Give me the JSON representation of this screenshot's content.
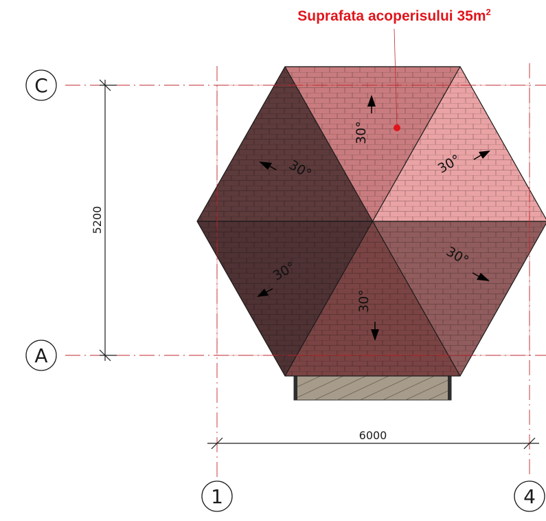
{
  "title": {
    "text": "Suprafata acoperisului 35m",
    "sup": "2",
    "color": "#e0151c"
  },
  "grid": {
    "rows": [
      {
        "label": "C"
      },
      {
        "label": "A"
      }
    ],
    "columns": [
      {
        "label": "1"
      },
      {
        "label": "4"
      }
    ]
  },
  "dimensions": {
    "vertical": "5200",
    "horizontal": "6000"
  },
  "roof": {
    "shape": "hexagonal hip roof, six facets",
    "pitch_labels": [
      "30°",
      "30°",
      "30°",
      "30°",
      "30°",
      "30°"
    ],
    "facet_colors": [
      "#c97c7f",
      "#eaa3a5",
      "#915c5d",
      "#7b4444",
      "#4f3234",
      "#5d3a3b"
    ],
    "marker_color": "#e0151c"
  },
  "colors": {
    "grid_line": "#c0272d",
    "ink": "#1a1a1a",
    "porch": "#a79c8c"
  }
}
